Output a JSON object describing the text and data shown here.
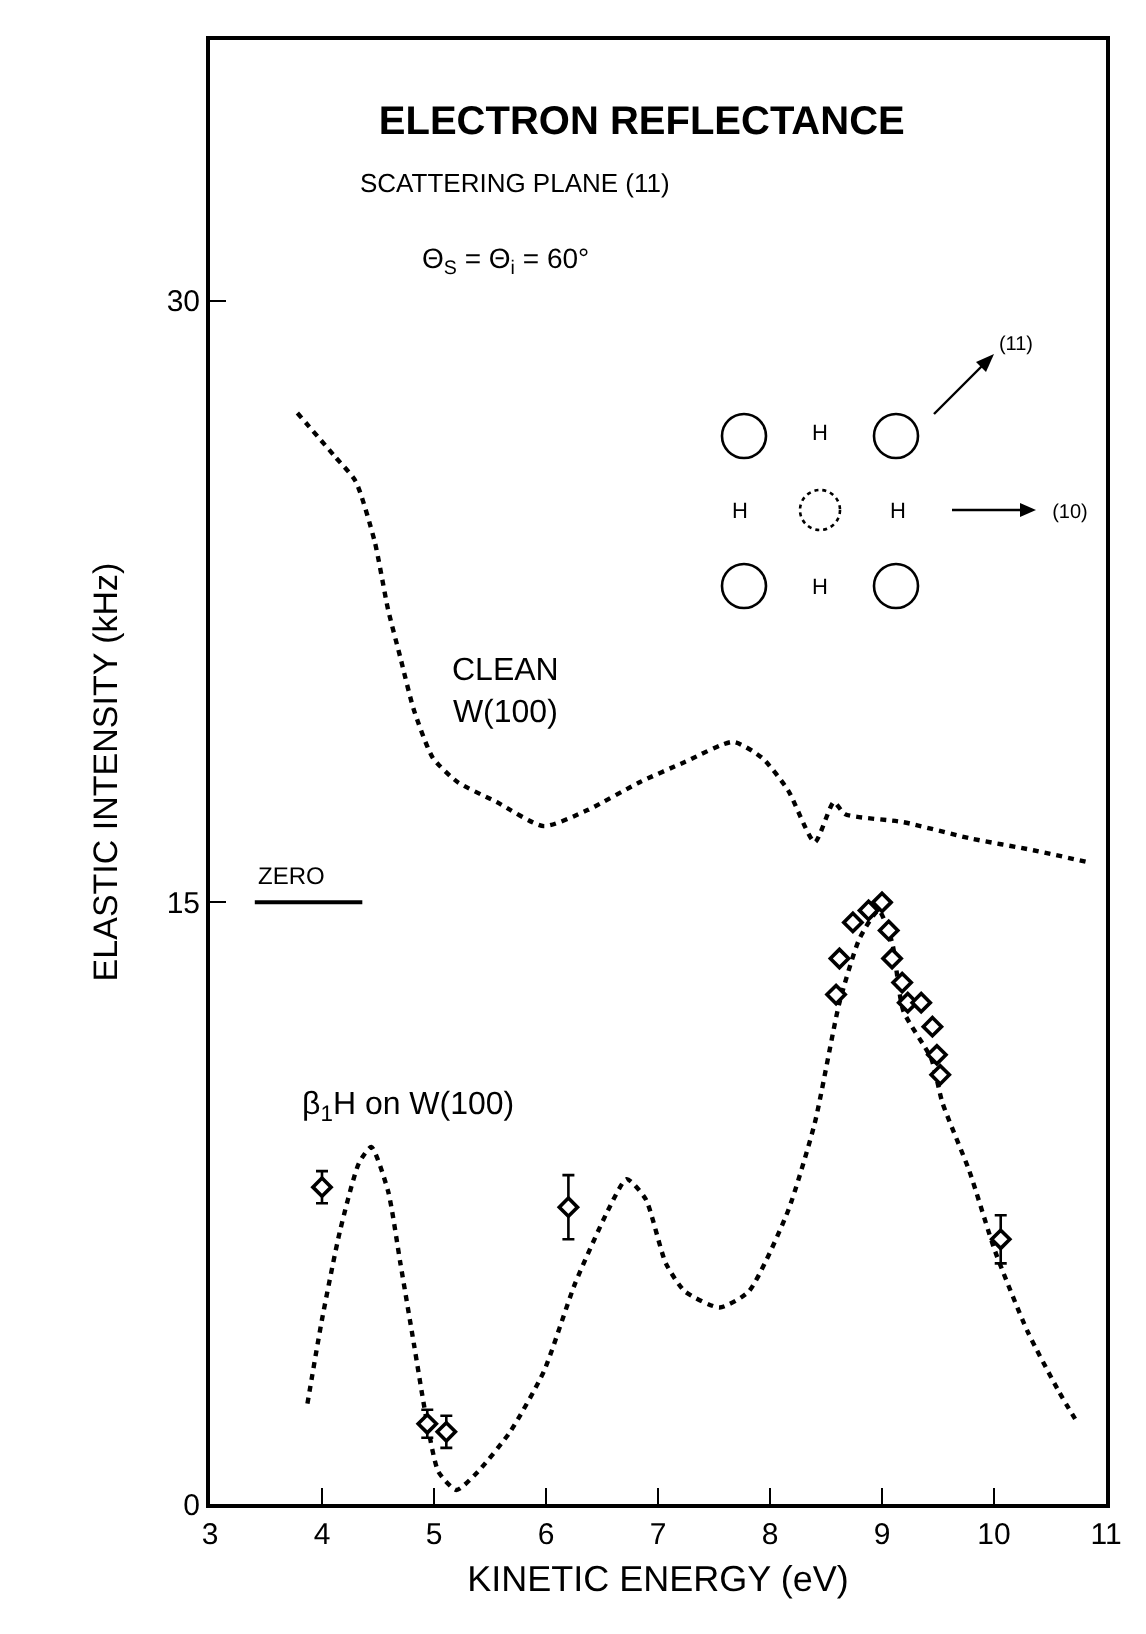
{
  "chart_data": {
    "type": "line",
    "title": "ELECTRON REFLECTANCE",
    "subtitle": "SCATTERING PLANE (11)",
    "xlabel": "KINETIC ENERGY (eV)",
    "ylabel": "ELASTIC INTENSITY (kHz)",
    "xlim": [
      3,
      11
    ],
    "ylim": [
      0,
      36.5
    ],
    "xticks": [
      3,
      4,
      5,
      6,
      7,
      8,
      9,
      10,
      11
    ],
    "yticks": [
      0,
      15,
      30
    ],
    "grid": false,
    "legend": false,
    "marker": "none",
    "line_style": "dotted",
    "annotations": [
      "Θ$_{S}$ = Θ$_{i}$ = 60°",
      "H",
      "H",
      "H",
      "H",
      "(11)",
      "(10)"
    ],
    "ref_lines": [
      {
        "axis": "y",
        "value": 15,
        "label": "ZERO",
        "color": "#000000"
      }
    ],
    "series": [
      {
        "name": "CLEAN W(100)",
        "color": "#000000",
        "x": [
          3.78,
          4.12,
          4.3,
          4.47,
          4.59,
          4.7,
          4.82,
          4.99,
          5.21,
          5.56,
          5.98,
          6.37,
          6.84,
          7.24,
          7.67,
          7.93,
          8.16,
          8.4,
          8.57,
          8.67,
          9.19,
          9.78,
          10.35,
          10.84
        ],
        "values": [
          27.2,
          26.1,
          25.5,
          24.0,
          22.3,
          21.1,
          19.8,
          18.6,
          18.0,
          17.5,
          16.9,
          17.3,
          18.0,
          18.5,
          19.0,
          18.6,
          17.8,
          16.5,
          17.5,
          17.2,
          17.0,
          16.6,
          16.3,
          16.0
        ]
      },
      {
        "name": "β$_{1}$H on W(100)",
        "color": "#000000",
        "x": [
          3.87,
          4.0,
          4.16,
          4.33,
          4.44,
          4.59,
          4.7,
          4.82,
          4.94,
          5.04,
          5.2,
          5.39,
          5.68,
          5.98,
          6.26,
          6.55,
          6.72,
          6.89,
          7.07,
          7.24,
          7.55,
          7.81,
          8.16,
          8.4,
          8.62,
          8.8,
          8.97,
          9.09,
          9.19,
          9.44,
          9.54,
          9.78,
          10.01,
          10.3,
          10.58,
          10.75
        ],
        "values": [
          2.5,
          4.6,
          6.8,
          8.5,
          8.9,
          7.8,
          6.0,
          4.0,
          2.0,
          0.8,
          0.35,
          0.8,
          1.8,
          3.3,
          5.5,
          7.3,
          8.1,
          7.6,
          6.0,
          5.3,
          4.9,
          5.3,
          7.3,
          9.5,
          12.5,
          14.1,
          14.8,
          14.0,
          12.3,
          11.1,
          10.0,
          8.3,
          6.3,
          4.3,
          2.8,
          2.0
        ]
      },
      {
        "type": "scatter",
        "color": "#000000",
        "marker": "diamond",
        "x": [
          4.0,
          4.94,
          5.11,
          6.2,
          10.06,
          8.59,
          8.62,
          8.74,
          8.88,
          9.0,
          9.06,
          9.09,
          9.18,
          9.23,
          9.35,
          9.45,
          9.49,
          9.52
        ],
        "values": [
          7.9,
          2.0,
          1.8,
          7.4,
          6.6,
          12.7,
          13.6,
          14.5,
          14.8,
          15.0,
          14.3,
          13.6,
          13.0,
          12.5,
          12.5,
          11.9,
          11.2,
          10.7
        ],
        "errors": [
          0.4,
          0.35,
          0.4,
          0.8,
          0.6,
          null,
          null,
          null,
          null,
          null,
          null,
          null,
          null,
          null,
          null,
          null,
          null,
          null
        ]
      }
    ]
  }
}
